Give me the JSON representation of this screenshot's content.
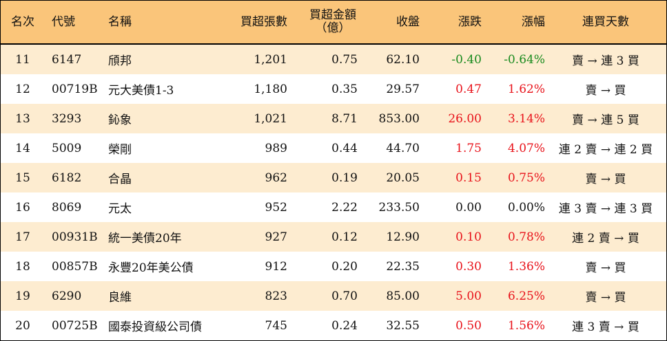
{
  "header": {
    "rank": "名次",
    "code": "代號",
    "name": "名稱",
    "net_buy": "買超張數",
    "amount_line1": "買超金額",
    "amount_line2": "（億）",
    "close": "收盤",
    "change": "漲跌",
    "pct": "漲幅",
    "streak": "連買天數"
  },
  "rows": [
    {
      "rank": "11",
      "code": "6147",
      "name": "頎邦",
      "net_buy": "1,201",
      "amount": "0.75",
      "close": "62.10",
      "change": "-0.40",
      "pct": "-0.64%",
      "streak": "賣 → 連 3 買",
      "trend": "down"
    },
    {
      "rank": "12",
      "code": "00719B",
      "name": "元大美債1-3",
      "net_buy": "1,180",
      "amount": "0.35",
      "close": "29.57",
      "change": "0.47",
      "pct": "1.62%",
      "streak": "賣 → 買",
      "trend": "up"
    },
    {
      "rank": "13",
      "code": "3293",
      "name": "鈊象",
      "net_buy": "1,021",
      "amount": "8.71",
      "close": "853.00",
      "change": "26.00",
      "pct": "3.14%",
      "streak": "賣 → 連 5 買",
      "trend": "up"
    },
    {
      "rank": "14",
      "code": "5009",
      "name": "榮剛",
      "net_buy": "989",
      "amount": "0.44",
      "close": "44.70",
      "change": "1.75",
      "pct": "4.07%",
      "streak": "連 2 賣 → 連 2 買",
      "trend": "up"
    },
    {
      "rank": "15",
      "code": "6182",
      "name": "合晶",
      "net_buy": "962",
      "amount": "0.19",
      "close": "20.05",
      "change": "0.15",
      "pct": "0.75%",
      "streak": "賣 → 買",
      "trend": "up"
    },
    {
      "rank": "16",
      "code": "8069",
      "name": "元太",
      "net_buy": "952",
      "amount": "2.22",
      "close": "233.50",
      "change": "0.00",
      "pct": "0.00%",
      "streak": "連 3 賣 → 連 3 買",
      "trend": "flat"
    },
    {
      "rank": "17",
      "code": "00931B",
      "name": "統一美債20年",
      "net_buy": "927",
      "amount": "0.12",
      "close": "12.90",
      "change": "0.10",
      "pct": "0.78%",
      "streak": "連 2 賣 → 買",
      "trend": "up"
    },
    {
      "rank": "18",
      "code": "00857B",
      "name": "永豐20年美公債",
      "net_buy": "912",
      "amount": "0.20",
      "close": "22.35",
      "change": "0.30",
      "pct": "1.36%",
      "streak": "賣 → 買",
      "trend": "up"
    },
    {
      "rank": "19",
      "code": "6290",
      "name": "良維",
      "net_buy": "823",
      "amount": "0.70",
      "close": "85.00",
      "change": "5.00",
      "pct": "6.25%",
      "streak": "賣 → 買",
      "trend": "up"
    },
    {
      "rank": "20",
      "code": "00725B",
      "name": "國泰投資級公司債",
      "net_buy": "745",
      "amount": "0.24",
      "close": "32.55",
      "change": "0.50",
      "pct": "1.56%",
      "streak": "連 3 賣 → 買",
      "trend": "up"
    }
  ]
}
